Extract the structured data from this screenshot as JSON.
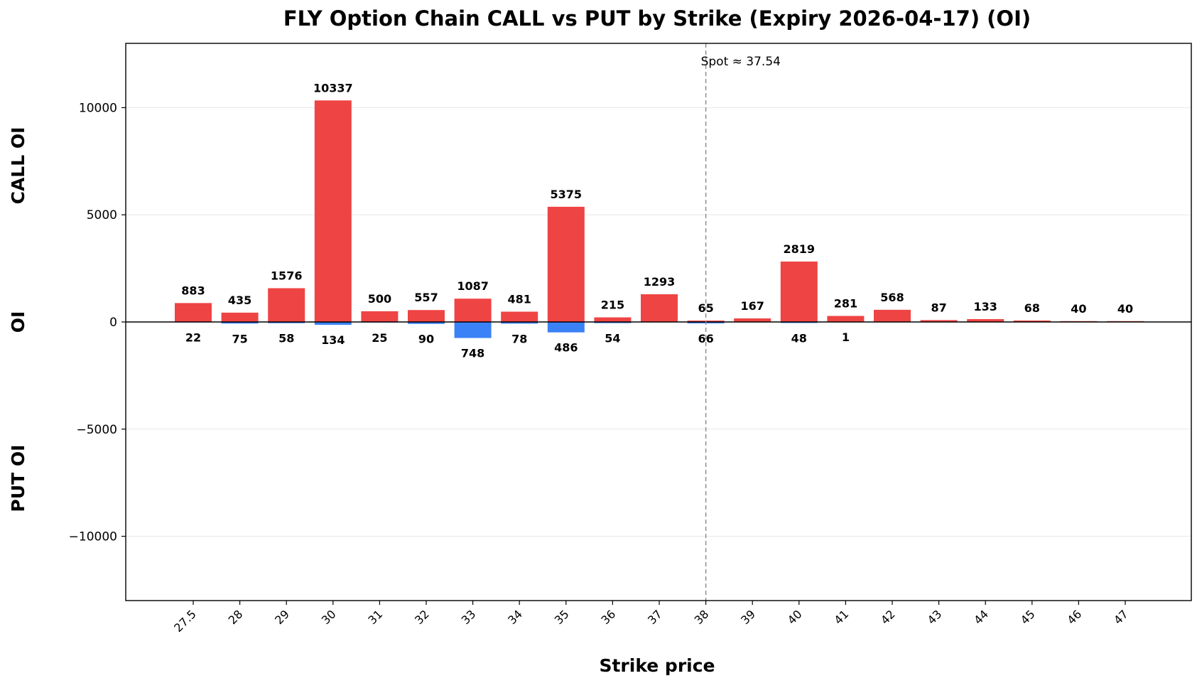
{
  "chart_data": {
    "type": "bar",
    "title": "FLY Option Chain CALL vs PUT by Strike (Expiry 2026-04-17) (OI)",
    "xlabel": "Strike price",
    "ylabel": "OI",
    "ylabel_top": "CALL OI",
    "ylabel_bottom": "PUT OI",
    "categories": [
      "27.5",
      "28",
      "29",
      "30",
      "31",
      "32",
      "33",
      "34",
      "35",
      "36",
      "37",
      "38",
      "39",
      "40",
      "41",
      "42",
      "43",
      "44",
      "45",
      "46",
      "47"
    ],
    "series": [
      {
        "color": "#ef4444",
        "values": [
          883,
          435,
          1576,
          10337,
          500,
          557,
          1087,
          481,
          5375,
          215,
          1293,
          65,
          167,
          2819,
          281,
          568,
          87,
          133,
          68,
          40,
          40
        ]
      },
      {
        "color": "#3b82f6",
        "values": [
          22,
          75,
          58,
          134,
          25,
          90,
          748,
          78,
          486,
          54,
          0,
          66,
          0,
          48,
          1,
          0,
          0,
          0,
          0,
          0,
          0
        ]
      }
    ],
    "put_labels": [
      "22",
      "75",
      "58",
      "134",
      "25",
      "90",
      "748",
      "78",
      "486",
      "54",
      "",
      "66",
      "",
      "48",
      "1",
      "",
      "",
      "",
      "",
      "",
      ""
    ],
    "yticks": [
      10000,
      5000,
      0,
      -5000,
      -10000
    ],
    "ytick_labels": [
      "10000",
      "5000",
      "0",
      "−5000",
      "−10000"
    ],
    "ylim": [
      -13000,
      13000
    ],
    "grid": "horizontal",
    "spot": {
      "label": "Spot ≈ 37.54",
      "value": 37.54
    }
  }
}
